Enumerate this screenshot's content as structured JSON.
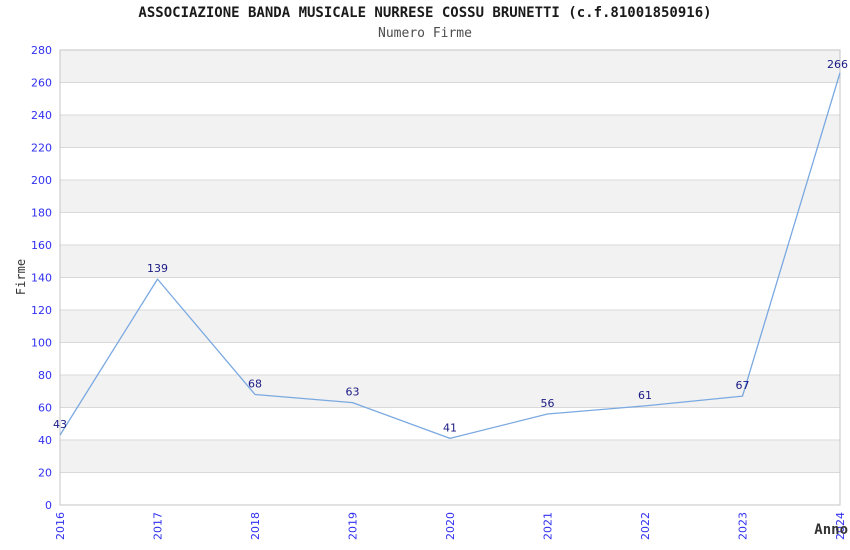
{
  "chart_data": {
    "type": "line",
    "title": "ASSOCIAZIONE BANDA MUSICALE NURRESE COSSU BRUNETTI (c.f.81001850916)",
    "subtitle": "Numero Firme",
    "xlabel": "Anno",
    "ylabel": "Firme",
    "categories": [
      "2016",
      "2017",
      "2018",
      "2019",
      "2020",
      "2021",
      "2022",
      "2023",
      "2024"
    ],
    "values": [
      43,
      139,
      68,
      63,
      41,
      56,
      61,
      67,
      266
    ],
    "ylim": [
      0,
      280
    ],
    "ytick_step": 20,
    "grid": true,
    "legend": "none",
    "colors": {
      "line": "#7aa9e1",
      "tick_label": "#3030f0",
      "data_label": "#1a1a85",
      "band_light": "#ffffff",
      "band_dark": "#f2f2f2",
      "grid_line": "#d9d9d9",
      "plot_border": "#c5c5c5",
      "title": "#1a1a1a",
      "subtitle": "#4d4d4d",
      "axis_label": "#333333"
    }
  }
}
